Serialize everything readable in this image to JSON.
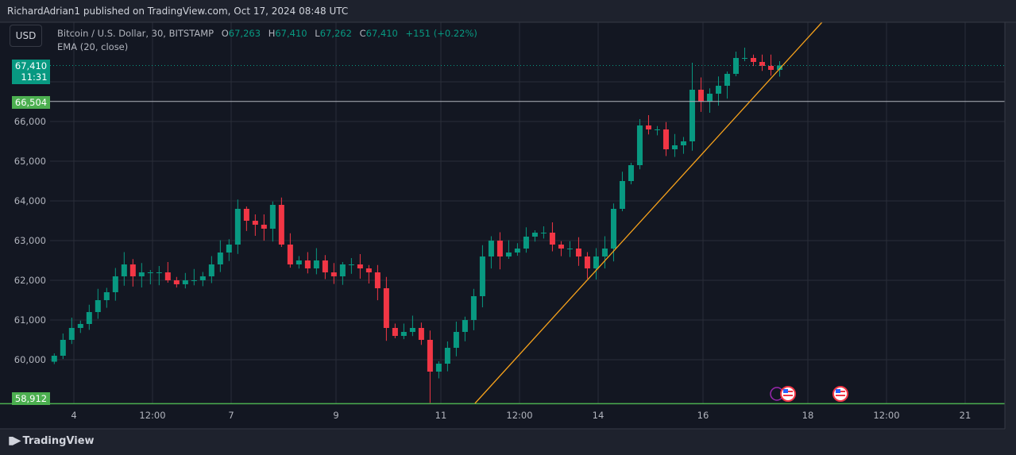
{
  "header": {
    "published": "RichardAdrian1 published on TradingView.com, Oct 17, 2024 08:48 UTC"
  },
  "currency_button": "USD",
  "legend": {
    "symbol": "Bitcoin / U.S. Dollar, 30, BITSTAMP",
    "o_key": "O",
    "o": "67,263",
    "h_key": "H",
    "h": "67,410",
    "l_key": "L",
    "l": "67,262",
    "c_key": "C",
    "c": "67,410",
    "change": "+151 (+0.22%)",
    "indicator": "EMA (20, close)"
  },
  "price_labels": {
    "last": "67,410",
    "countdown": "11:31",
    "level_high": "66,504",
    "level_low": "58,912"
  },
  "brand": "TradingView",
  "colors": {
    "up": "#089981",
    "down": "#f23645",
    "trend": "#f7a21b",
    "level": "#b2b5be",
    "low_level": "#4caf50",
    "bg": "#131722"
  },
  "chart_data": {
    "type": "candlestick",
    "title": "Bitcoin / U.S. Dollar, 30, BITSTAMP",
    "y_ticks": [
      60000,
      61000,
      62000,
      63000,
      64000,
      65000,
      66000
    ],
    "y_tick_labels": [
      "60,000",
      "61,000",
      "62,000",
      "63,000",
      "64,000",
      "65,000",
      "66,000"
    ],
    "ylim": [
      58900,
      68500
    ],
    "x_ticks": [
      {
        "day": 4,
        "label": "4"
      },
      {
        "day": 5.5,
        "label": "12:00"
      },
      {
        "day": 7,
        "label": "7"
      },
      {
        "day": 9,
        "label": "9"
      },
      {
        "day": 11,
        "label": "11"
      },
      {
        "day": 12.5,
        "label": "12:00"
      },
      {
        "day": 14,
        "label": "14"
      },
      {
        "day": 16,
        "label": "16"
      },
      {
        "day": 18,
        "label": "18"
      },
      {
        "day": 19.5,
        "label": "12:00"
      },
      {
        "day": 21,
        "label": "21"
      }
    ],
    "xlim": [
      3.55,
      21.75
    ],
    "start_day": 3.55,
    "step_days": 0.1667,
    "closes": [
      60100,
      60500,
      60800,
      60900,
      61200,
      61500,
      61700,
      62100,
      62400,
      62100,
      62200,
      62200,
      62200,
      62000,
      61900,
      62000,
      62000,
      62100,
      62400,
      62700,
      62900,
      63800,
      63500,
      63400,
      63300,
      63900,
      62900,
      62400,
      62500,
      62300,
      62500,
      62200,
      62100,
      62400,
      62400,
      62300,
      62200,
      61800,
      60800,
      60600,
      60700,
      60800,
      60500,
      59700,
      59900,
      60300,
      60700,
      61000,
      61600,
      62600,
      63000,
      62600,
      62700,
      62800,
      63100,
      63200,
      63200,
      62900,
      62800,
      62800,
      62600,
      62300,
      62600,
      62800,
      63800,
      64500,
      64900,
      65900,
      65800,
      65800,
      65300,
      65400,
      65500,
      66800,
      66500,
      66700,
      66900,
      67200,
      67600,
      67600,
      67500,
      67400,
      67300,
      67410
    ],
    "horizontal_levels": [
      66504,
      58912
    ],
    "last_price": 67410,
    "trendline": {
      "start": {
        "day": 11.65,
        "price": 58900
      },
      "end": {
        "day": 18.27,
        "price": 68500
      }
    },
    "events": [
      {
        "day": 17.5,
        "type": "us-flag"
      },
      {
        "day": 18.5,
        "type": "us-flag"
      }
    ]
  }
}
